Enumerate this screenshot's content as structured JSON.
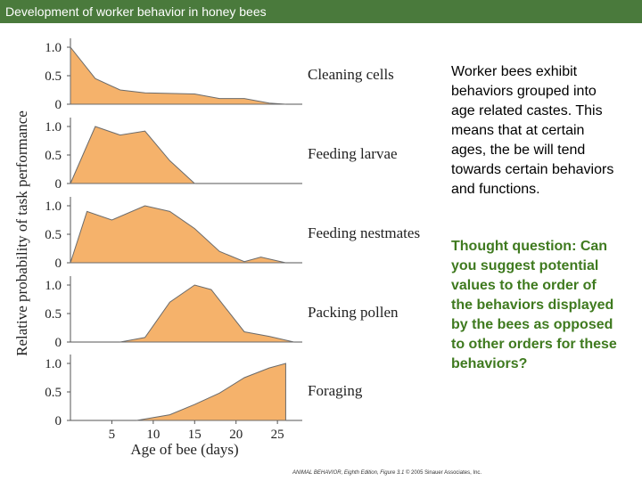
{
  "header": {
    "title": "Development of worker behavior in honey bees"
  },
  "text": {
    "description": "Worker bees exhibit behaviors grouped into age related castes. This means that at certain ages, the be will tend towards certain behaviors and functions.",
    "question": "Thought question: Can you suggest potential values to the order of the behaviors displayed by the bees as opposed to other orders for these behaviors?"
  },
  "credit": {
    "book": "ANIMAL BEHAVIOR, Eighth Edition, Figure 3.1",
    "rest": " © 2005 Sinauer Associates, Inc."
  },
  "colors": {
    "fill": "#f5b26b",
    "stroke": "#6b6b6b",
    "accent": "#4a7a3c"
  },
  "chart_data": {
    "type": "area",
    "ylabel": "Relative probability of task performance",
    "xlabel": "Age of bee (days)",
    "xlim": [
      0,
      28
    ],
    "ylim": [
      0,
      1.0
    ],
    "xticks": [
      "5",
      "10",
      "15",
      "20",
      "25"
    ],
    "xtick_values": [
      5,
      10,
      15,
      20,
      25
    ],
    "yticks": [
      "0",
      "0.5",
      "1.0"
    ],
    "ytick_values": [
      0,
      0.5,
      1.0
    ],
    "series": [
      {
        "name": "Cleaning cells",
        "points": [
          [
            0,
            1.0
          ],
          [
            3,
            0.45
          ],
          [
            6,
            0.25
          ],
          [
            9,
            0.2
          ],
          [
            12,
            0.19
          ],
          [
            15,
            0.18
          ],
          [
            18,
            0.1
          ],
          [
            21,
            0.1
          ],
          [
            24,
            0.02
          ],
          [
            26,
            0
          ]
        ]
      },
      {
        "name": "Feeding larvae",
        "points": [
          [
            0,
            0
          ],
          [
            3,
            1.0
          ],
          [
            6,
            0.85
          ],
          [
            9,
            0.92
          ],
          [
            12,
            0.4
          ],
          [
            15,
            0
          ]
        ]
      },
      {
        "name": "Feeding nestmates",
        "points": [
          [
            0,
            0
          ],
          [
            2,
            0.9
          ],
          [
            5,
            0.75
          ],
          [
            9,
            1.0
          ],
          [
            12,
            0.9
          ],
          [
            15,
            0.6
          ],
          [
            18,
            0.2
          ],
          [
            21,
            0.02
          ],
          [
            23,
            0.1
          ],
          [
            26,
            0
          ]
        ]
      },
      {
        "name": "Packing pollen",
        "points": [
          [
            6,
            0
          ],
          [
            9,
            0.08
          ],
          [
            12,
            0.7
          ],
          [
            15,
            1.0
          ],
          [
            17,
            0.92
          ],
          [
            21,
            0.18
          ],
          [
            24,
            0.1
          ],
          [
            27,
            0
          ]
        ]
      },
      {
        "name": "Foraging",
        "points": [
          [
            8,
            0
          ],
          [
            12,
            0.1
          ],
          [
            15,
            0.28
          ],
          [
            18,
            0.48
          ],
          [
            21,
            0.75
          ],
          [
            24,
            0.92
          ],
          [
            26,
            1.0
          ],
          [
            26,
            0
          ]
        ]
      }
    ]
  }
}
